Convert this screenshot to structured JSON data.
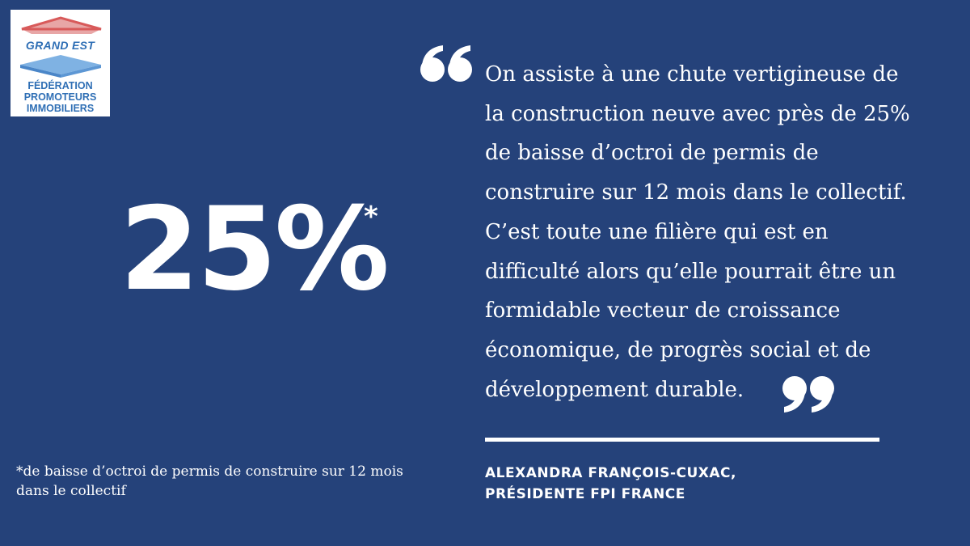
{
  "logo": {
    "region": "GRAND EST",
    "lines": [
      "FÉDÉRATION",
      "PROMOTEURS",
      "IMMOBILIERS"
    ]
  },
  "stat": {
    "value": "25%",
    "marker": "*"
  },
  "footnote": {
    "lines": [
      "*de baisse d’octroi de permis de construire sur 12 mois",
      "dans le collectif"
    ]
  },
  "quote": {
    "open_mark": "“",
    "close_mark": "”",
    "lines": [
      "On assiste à une chute vertigineuse de",
      "la construction neuve avec près de 25%",
      "de baisse d’octroi de permis de",
      "construire sur 12 mois dans le collectif.",
      "C’est toute une filière qui est en",
      "difficulté alors qu’elle pourrait être un",
      "formidable vecteur de croissance",
      "économique, de progrès social et de",
      "développement durable."
    ]
  },
  "author": {
    "name": "ALEXANDRA FRANÇOIS-CUXAC,",
    "title": "PRÉSIDENTE FPI FRANCE"
  },
  "colors": {
    "background": "#25427a",
    "text": "#ffffff",
    "logo_blue": "#2f6fb5",
    "logo_red": "#d85a5a"
  }
}
